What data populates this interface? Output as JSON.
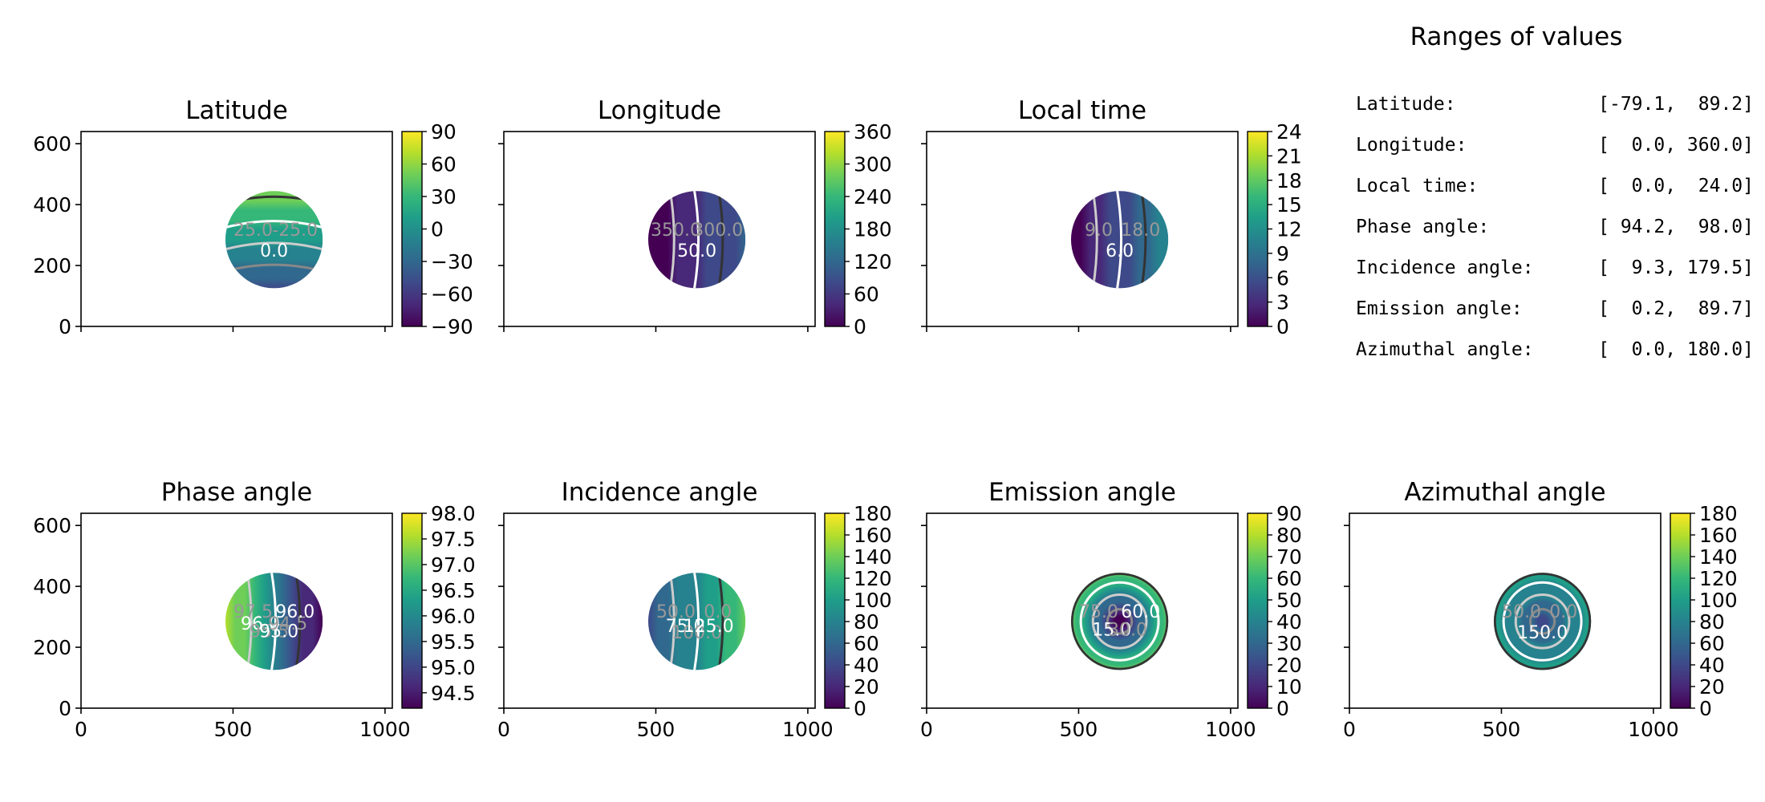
{
  "chart_data": {
    "type": "heatmap",
    "panels": [
      {
        "title": "Latitude",
        "colorbar": {
          "min": -90,
          "max": 90,
          "ticks": [
            90,
            60,
            30,
            0,
            -30,
            -60,
            -90
          ]
        },
        "yticks": [
          0,
          200,
          400,
          600
        ],
        "xticks": [],
        "contour_labels": [
          "25.0",
          "0.0",
          "-25.0"
        ],
        "field": {
          "kind": "latitude"
        }
      },
      {
        "title": "Longitude",
        "colorbar": {
          "min": 0,
          "max": 360,
          "ticks": [
            360,
            300,
            240,
            180,
            120,
            60,
            0
          ]
        },
        "yticks": [],
        "xticks": [],
        "contour_labels": [
          "350.0",
          "50.0",
          "300.0"
        ],
        "field": {
          "kind": "longitude"
        }
      },
      {
        "title": "Local time",
        "colorbar": {
          "min": 0,
          "max": 24,
          "ticks": [
            24,
            21,
            18,
            15,
            12,
            9,
            6,
            3,
            0
          ]
        },
        "yticks": [],
        "xticks": [],
        "contour_labels": [
          "9.0",
          "6.0",
          "18.0"
        ],
        "field": {
          "kind": "localtime"
        }
      },
      {
        "title": "Phase angle",
        "colorbar": {
          "min": 94.2,
          "max": 98.0,
          "ticks": [
            98.0,
            97.5,
            97.0,
            96.5,
            96.0,
            95.5,
            95.0,
            94.5
          ]
        },
        "yticks": [
          0,
          200,
          400,
          600
        ],
        "xticks": [
          0,
          500,
          1000
        ],
        "contour_labels": [
          "97.5",
          "96.0",
          "95.5",
          "95.0",
          "94.5",
          "96.0"
        ],
        "field": {
          "kind": "phase"
        }
      },
      {
        "title": "Incidence angle",
        "colorbar": {
          "min": 0,
          "max": 180,
          "ticks": [
            180,
            160,
            140,
            120,
            100,
            80,
            60,
            40,
            20,
            0
          ]
        },
        "yticks": [],
        "xticks": [
          0,
          500,
          1000
        ],
        "contour_labels": [
          "50.0",
          "75.0",
          "100.0",
          "125.0",
          "0.0"
        ],
        "field": {
          "kind": "incidence"
        }
      },
      {
        "title": "Emission angle",
        "colorbar": {
          "min": 0,
          "max": 90,
          "ticks": [
            90,
            80,
            70,
            60,
            50,
            40,
            30,
            20,
            10,
            0
          ]
        },
        "yticks": [],
        "xticks": [
          0,
          500,
          1000
        ],
        "contour_labels": [
          "75.0",
          "15.0",
          "30.0",
          "60.0"
        ],
        "field": {
          "kind": "emission"
        }
      },
      {
        "title": "Azimuthal angle",
        "colorbar": {
          "min": 0,
          "max": 180,
          "ticks": [
            180,
            160,
            140,
            120,
            100,
            80,
            60,
            40,
            20,
            0
          ]
        },
        "yticks": [],
        "xticks": [
          0,
          500,
          1000
        ],
        "contour_labels": [
          "50.0",
          "150.0",
          "0.0"
        ],
        "field": {
          "kind": "azimuth"
        }
      }
    ],
    "axes": {
      "xlim": [
        0,
        1024
      ],
      "ylim": [
        0,
        640
      ]
    },
    "disc": {
      "cx": 635,
      "cy": 285,
      "r": 160
    }
  },
  "ranges": {
    "title": "Ranges of values",
    "rows": [
      {
        "label": "Latitude:",
        "value": "[-79.1,  89.2]"
      },
      {
        "label": "Longitude:",
        "value": "[  0.0, 360.0]"
      },
      {
        "label": "Local time:",
        "value": "[  0.0,  24.0]"
      },
      {
        "label": "Phase angle:",
        "value": "[ 94.2,  98.0]"
      },
      {
        "label": "Incidence angle:",
        "value": "[  9.3, 179.5]"
      },
      {
        "label": "Emission angle:",
        "value": "[  0.2,  89.7]"
      },
      {
        "label": "Azimuthal angle:",
        "value": "[  0.0, 180.0]"
      }
    ]
  }
}
